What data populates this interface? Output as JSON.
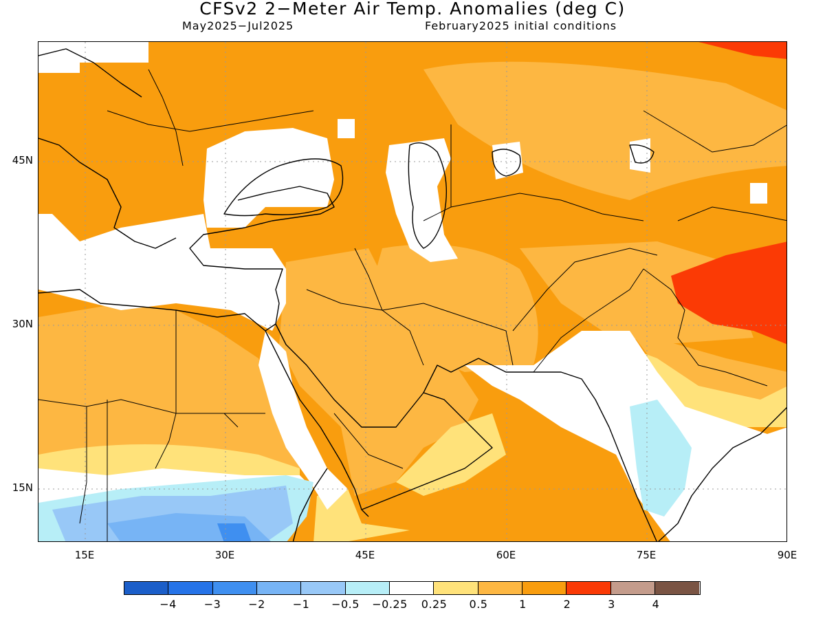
{
  "title": "CFSv2 2−Meter Air Temp. Anomalies (deg C)",
  "subtitle_left": "May2025−Jul2025",
  "subtitle_right": "February2025 initial conditions",
  "map": {
    "lon_range": [
      10,
      90
    ],
    "lat_range": [
      10,
      55
    ],
    "lat_ticks": [
      "45N",
      "30N",
      "15N"
    ],
    "lon_ticks": [
      "15E",
      "30E",
      "45E",
      "60E",
      "75E",
      "90E"
    ],
    "gridlines": "dotted"
  },
  "colorbar": {
    "colors": [
      "#1b5ec9",
      "#2573e8",
      "#3f8ff0",
      "#77b4f5",
      "#98c8f7",
      "#b7eef7",
      "#ffffff",
      "#ffe27a",
      "#fdb742",
      "#f99d0e",
      "#fb3a05",
      "#c49c8c",
      "#7a5444"
    ],
    "labels": [
      "−4",
      "−3",
      "−2",
      "−1",
      "−0.5",
      "−0.25",
      "0.25",
      "0.5",
      "1",
      "2",
      "3",
      "4"
    ]
  }
}
